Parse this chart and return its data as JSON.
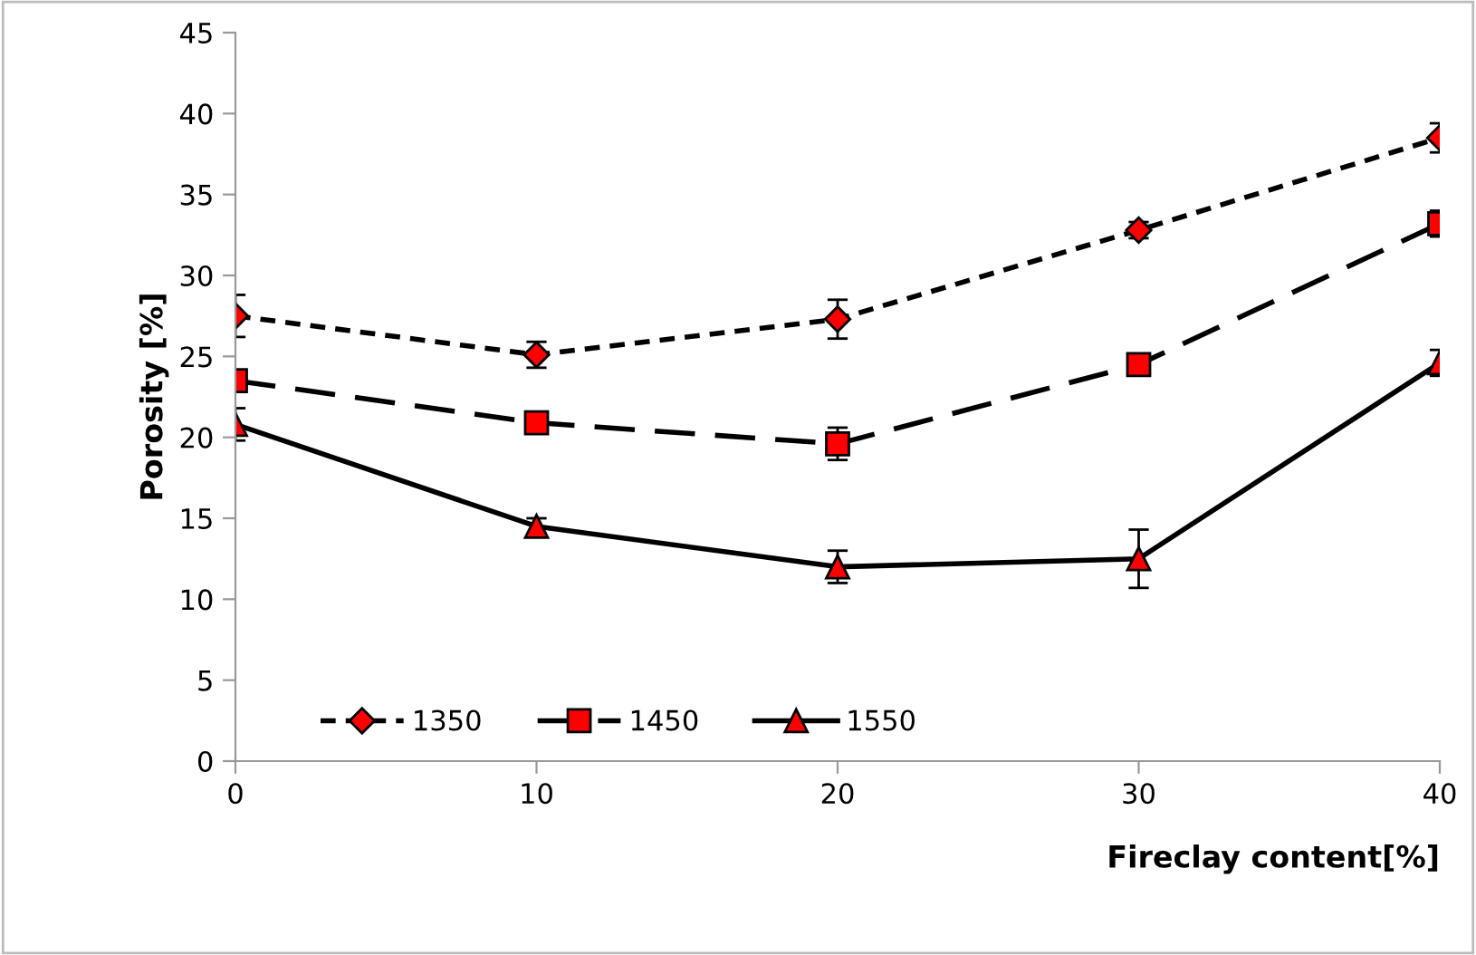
{
  "chart_data": {
    "type": "line",
    "xlabel": "Fireclay content[%]",
    "ylabel": "Porosity [%]",
    "x": [
      0,
      10,
      20,
      30,
      40
    ],
    "series": [
      {
        "name": "1350",
        "color": "#ff0000",
        "marker": "diamond",
        "line_style": "dotted",
        "values": [
          27.5,
          25.1,
          27.3,
          32.8,
          38.5
        ],
        "errors": [
          1.3,
          0.8,
          1.2,
          0.5,
          0.9
        ]
      },
      {
        "name": "1450",
        "color": "#ff0000",
        "marker": "square",
        "line_style": "dashed",
        "values": [
          23.5,
          20.9,
          19.6,
          24.5,
          33.2
        ],
        "errors": [
          0.5,
          null,
          1.0,
          null,
          0.8
        ]
      },
      {
        "name": "1550",
        "color": "#ff0000",
        "marker": "triangle",
        "line_style": "solid",
        "values": [
          20.8,
          14.5,
          12.0,
          12.5,
          24.6
        ],
        "errors": [
          1.0,
          0.5,
          1.0,
          1.8,
          0.8
        ]
      }
    ],
    "xlim": [
      0,
      40
    ],
    "xticks": [
      0,
      10,
      20,
      30,
      40
    ],
    "ylim": [
      0,
      45
    ],
    "yticks": [
      0,
      5,
      10,
      15,
      20,
      25,
      30,
      35,
      40,
      45
    ],
    "grid": false,
    "legend": "bottom left"
  }
}
